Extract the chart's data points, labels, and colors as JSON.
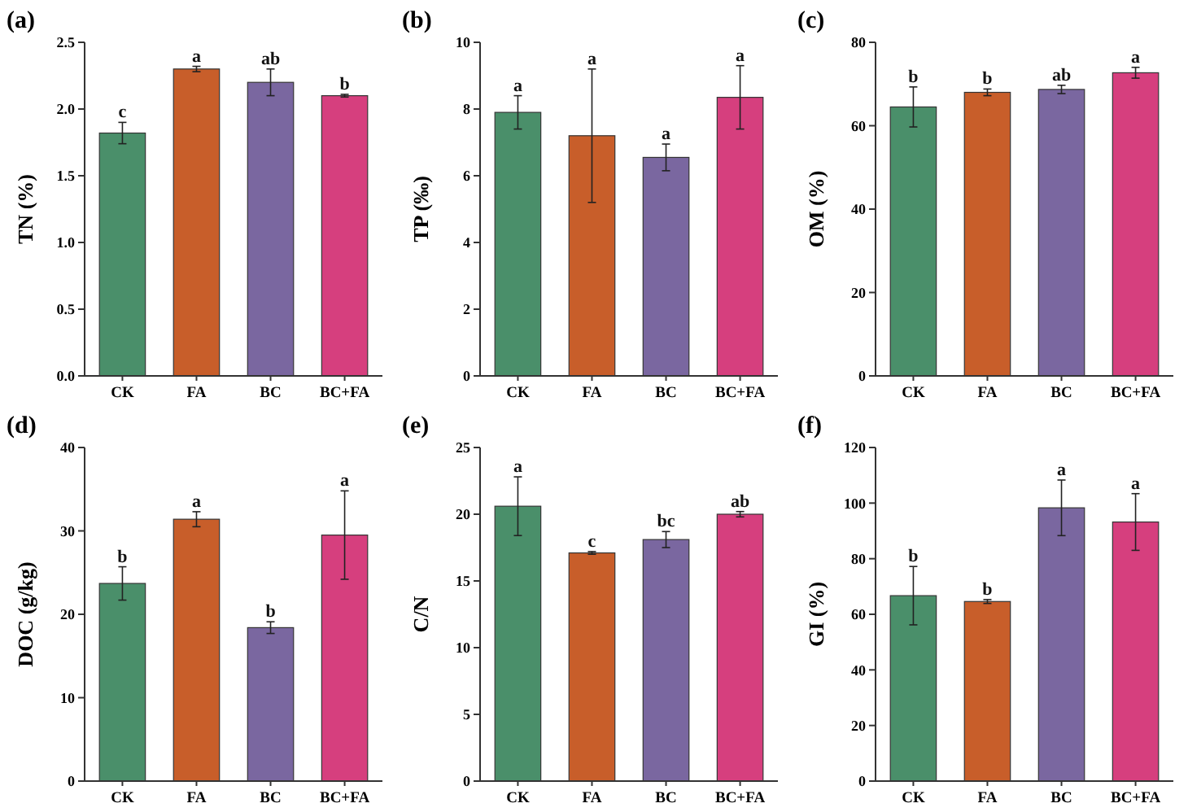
{
  "chart_data": [
    {
      "type": "bar",
      "title": "(a)",
      "ylabel": "TN (%)",
      "categories": [
        "CK",
        "FA",
        "BC",
        "BC+FA"
      ],
      "values": [
        1.82,
        2.3,
        2.2,
        2.1
      ],
      "errors": [
        0.08,
        0.02,
        0.1,
        0.01
      ],
      "colors": [
        "#4a8f6a",
        "#c85e2a",
        "#7a67a0",
        "#d63f7e"
      ],
      "ylim": [
        0,
        2.5
      ],
      "yticks": [
        {
          "value": 0,
          "label": "0.0"
        },
        0.5,
        {
          "value": 1,
          "label": "1.0"
        },
        1.5,
        {
          "value": 2,
          "label": "2.0"
        },
        2.5
      ],
      "grid": false,
      "annotations": [
        {
          "text": "c",
          "x": "CK",
          "y": 1.9
        },
        {
          "text": "a",
          "x": "FA",
          "y": 2.32
        },
        {
          "text": "ab",
          "x": "BC",
          "y": 2.3
        },
        {
          "text": "b",
          "x": "BC+FA",
          "y": 2.11
        }
      ]
    },
    {
      "type": "bar",
      "title": "(b)",
      "ylabel": "TP (‰)",
      "categories": [
        "CK",
        "FA",
        "BC",
        "BC+FA"
      ],
      "values": [
        7.9,
        7.2,
        6.55,
        8.35
      ],
      "errors": [
        0.5,
        2.0,
        0.4,
        0.95
      ],
      "colors": [
        "#4a8f6a",
        "#c85e2a",
        "#7a67a0",
        "#d63f7e"
      ],
      "ylim": [
        0,
        10
      ],
      "yticks": [
        0,
        2,
        4,
        6,
        8,
        10
      ],
      "grid": false,
      "annotations": [
        {
          "text": "a",
          "x": "CK",
          "y": 8.4
        },
        {
          "text": "a",
          "x": "FA",
          "y": 9.2
        },
        {
          "text": "a",
          "x": "BC",
          "y": 6.95
        },
        {
          "text": "a",
          "x": "BC+FA",
          "y": 9.3
        }
      ]
    },
    {
      "type": "bar",
      "title": "(c)",
      "ylabel": "OM (%)",
      "categories": [
        "CK",
        "FA",
        "BC",
        "BC+FA"
      ],
      "values": [
        64.5,
        68,
        68.7,
        72.7
      ],
      "errors": [
        4.8,
        0.8,
        1.0,
        1.3
      ],
      "colors": [
        "#4a8f6a",
        "#c85e2a",
        "#7a67a0",
        "#d63f7e"
      ],
      "ylim": [
        0,
        80
      ],
      "yticks": [
        0,
        20,
        40,
        60,
        80
      ],
      "grid": false,
      "annotations": [
        {
          "text": "b",
          "x": "CK",
          "y": 69.3
        },
        {
          "text": "b",
          "x": "FA",
          "y": 68.8
        },
        {
          "text": "ab",
          "x": "BC",
          "y": 69.7
        },
        {
          "text": "a",
          "x": "BC+FA",
          "y": 74
        }
      ]
    },
    {
      "type": "bar",
      "title": "(d)",
      "ylabel": "DOC (g/kg)",
      "categories": [
        "CK",
        "FA",
        "BC",
        "BC+FA"
      ],
      "values": [
        23.7,
        31.4,
        18.4,
        29.5
      ],
      "errors": [
        2.0,
        0.9,
        0.7,
        5.3
      ],
      "colors": [
        "#4a8f6a",
        "#c85e2a",
        "#7a67a0",
        "#d63f7e"
      ],
      "ylim": [
        0,
        40
      ],
      "yticks": [
        0,
        10,
        20,
        30,
        40
      ],
      "grid": false,
      "annotations": [
        {
          "text": "b",
          "x": "CK",
          "y": 25.7
        },
        {
          "text": "a",
          "x": "FA",
          "y": 32.3
        },
        {
          "text": "b",
          "x": "BC",
          "y": 19.1
        },
        {
          "text": "a",
          "x": "BC+FA",
          "y": 34.8
        }
      ]
    },
    {
      "type": "bar",
      "title": "(e)",
      "ylabel": "C/N",
      "categories": [
        "CK",
        "FA",
        "BC",
        "BC+FA"
      ],
      "values": [
        20.6,
        17.1,
        18.1,
        20.0
      ],
      "errors": [
        2.2,
        0.1,
        0.6,
        0.2
      ],
      "colors": [
        "#4a8f6a",
        "#c85e2a",
        "#7a67a0",
        "#d63f7e"
      ],
      "ylim": [
        0,
        25
      ],
      "yticks": [
        0,
        5,
        10,
        15,
        20,
        25
      ],
      "grid": false,
      "annotations": [
        {
          "text": "a",
          "x": "CK",
          "y": 22.8
        },
        {
          "text": "c",
          "x": "FA",
          "y": 17.2
        },
        {
          "text": "bc",
          "x": "BC",
          "y": 18.7
        },
        {
          "text": "ab",
          "x": "BC+FA",
          "y": 20.2
        }
      ]
    },
    {
      "type": "bar",
      "title": "(f)",
      "ylabel": "GI (%)",
      "categories": [
        "CK",
        "FA",
        "BC",
        "BC+FA"
      ],
      "values": [
        66.7,
        64.6,
        98.3,
        93.2
      ],
      "errors": [
        10.5,
        0.7,
        10,
        10.2
      ],
      "colors": [
        "#4a8f6a",
        "#c85e2a",
        "#7a67a0",
        "#d63f7e"
      ],
      "ylim": [
        0,
        120
      ],
      "yticks": [
        0,
        20,
        40,
        60,
        80,
        100,
        120
      ],
      "grid": false,
      "annotations": [
        {
          "text": "b",
          "x": "CK",
          "y": 77.2
        },
        {
          "text": "b",
          "x": "FA",
          "y": 65.3
        },
        {
          "text": "a",
          "x": "BC",
          "y": 108.3
        },
        {
          "text": "a",
          "x": "BC+FA",
          "y": 103.4
        }
      ]
    }
  ]
}
